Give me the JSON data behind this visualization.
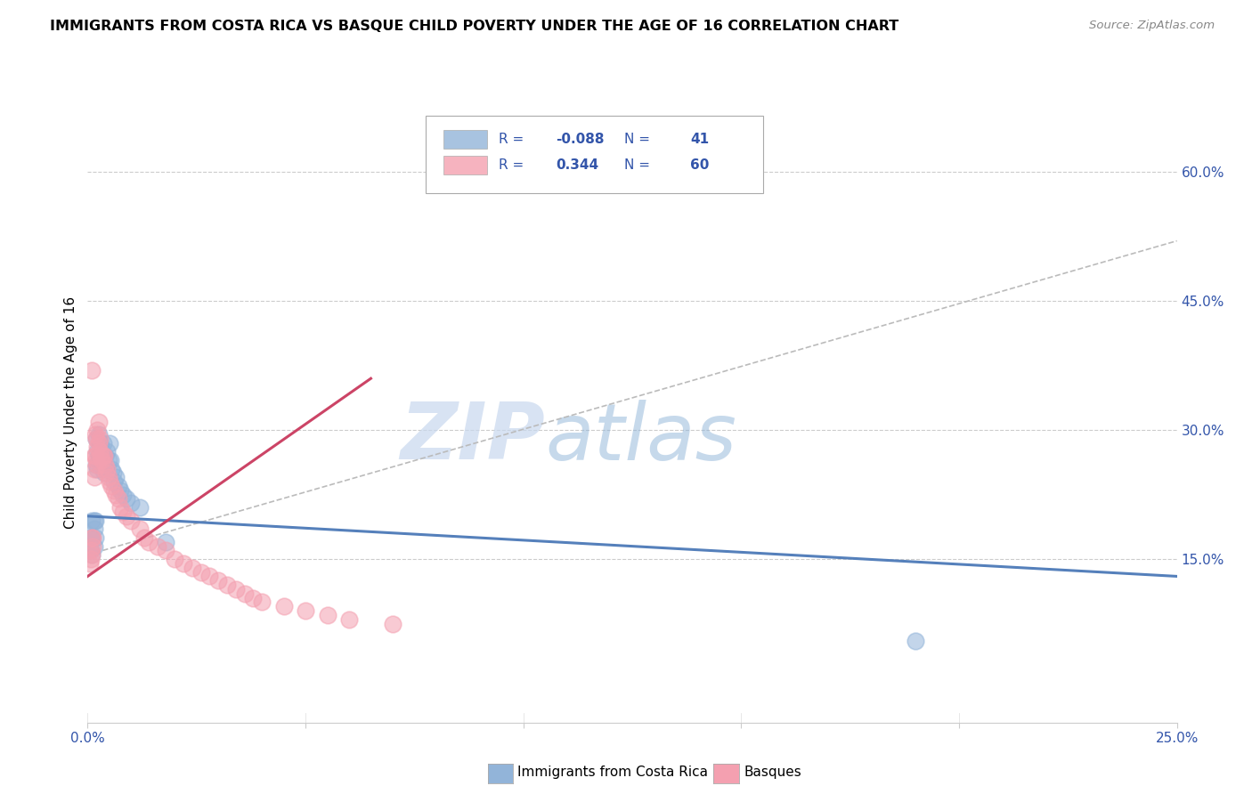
{
  "title": "IMMIGRANTS FROM COSTA RICA VS BASQUE CHILD POVERTY UNDER THE AGE OF 16 CORRELATION CHART",
  "source": "Source: ZipAtlas.com",
  "ylabel": "Child Poverty Under the Age of 16",
  "right_yticks": [
    "60.0%",
    "45.0%",
    "30.0%",
    "15.0%"
  ],
  "right_ytick_vals": [
    0.6,
    0.45,
    0.3,
    0.15
  ],
  "xmin": 0.0,
  "xmax": 0.25,
  "ymin": -0.04,
  "ymax": 0.68,
  "legend_blue_r": "-0.088",
  "legend_blue_n": "41",
  "legend_pink_r": "0.344",
  "legend_pink_n": "60",
  "blue_color": "#92B4D9",
  "pink_color": "#F4A0B0",
  "blue_line_color": "#5580BB",
  "pink_line_color": "#CC4466",
  "dash_color": "#BBBBBB",
  "watermark_zip": "ZIP",
  "watermark_atlas": "atlas",
  "blue_scatter_x": [
    0.0008,
    0.0008,
    0.001,
    0.001,
    0.001,
    0.0015,
    0.0015,
    0.0015,
    0.0018,
    0.0018,
    0.002,
    0.002,
    0.0022,
    0.0022,
    0.0025,
    0.0025,
    0.0028,
    0.0028,
    0.003,
    0.003,
    0.0035,
    0.0035,
    0.0038,
    0.004,
    0.0042,
    0.0045,
    0.0048,
    0.005,
    0.0052,
    0.0055,
    0.0058,
    0.006,
    0.0065,
    0.007,
    0.0075,
    0.008,
    0.009,
    0.01,
    0.012,
    0.018,
    0.19
  ],
  "blue_scatter_y": [
    0.175,
    0.16,
    0.195,
    0.175,
    0.155,
    0.195,
    0.185,
    0.165,
    0.195,
    0.175,
    0.29,
    0.26,
    0.275,
    0.255,
    0.295,
    0.27,
    0.285,
    0.26,
    0.28,
    0.265,
    0.285,
    0.265,
    0.25,
    0.27,
    0.255,
    0.275,
    0.265,
    0.285,
    0.265,
    0.255,
    0.25,
    0.24,
    0.245,
    0.235,
    0.23,
    0.225,
    0.22,
    0.215,
    0.21,
    0.17,
    0.055
  ],
  "pink_scatter_x": [
    0.0005,
    0.0008,
    0.0008,
    0.001,
    0.001,
    0.001,
    0.0012,
    0.0012,
    0.0015,
    0.0015,
    0.0015,
    0.0018,
    0.0018,
    0.002,
    0.002,
    0.0022,
    0.0022,
    0.0022,
    0.0025,
    0.0025,
    0.0028,
    0.0028,
    0.003,
    0.0032,
    0.0035,
    0.0038,
    0.004,
    0.0042,
    0.0045,
    0.0048,
    0.005,
    0.0055,
    0.006,
    0.0065,
    0.007,
    0.0075,
    0.008,
    0.009,
    0.01,
    0.012,
    0.013,
    0.014,
    0.016,
    0.018,
    0.02,
    0.022,
    0.024,
    0.026,
    0.028,
    0.03,
    0.032,
    0.034,
    0.036,
    0.038,
    0.04,
    0.045,
    0.05,
    0.055,
    0.06,
    0.07
  ],
  "pink_scatter_y": [
    0.145,
    0.16,
    0.15,
    0.37,
    0.175,
    0.155,
    0.175,
    0.165,
    0.27,
    0.255,
    0.245,
    0.295,
    0.27,
    0.29,
    0.265,
    0.3,
    0.28,
    0.26,
    0.31,
    0.285,
    0.29,
    0.275,
    0.27,
    0.265,
    0.27,
    0.27,
    0.26,
    0.25,
    0.255,
    0.245,
    0.24,
    0.235,
    0.23,
    0.225,
    0.22,
    0.21,
    0.205,
    0.2,
    0.195,
    0.185,
    0.175,
    0.17,
    0.165,
    0.16,
    0.15,
    0.145,
    0.14,
    0.135,
    0.13,
    0.125,
    0.12,
    0.115,
    0.11,
    0.105,
    0.1,
    0.095,
    0.09,
    0.085,
    0.08,
    0.075
  ],
  "blue_line_x": [
    0.0,
    0.25
  ],
  "blue_line_y": [
    0.2,
    0.13
  ],
  "pink_line_x": [
    0.0,
    0.065
  ],
  "pink_line_y": [
    0.13,
    0.36
  ],
  "dash_line_x": [
    0.0,
    0.25
  ],
  "dash_line_y": [
    0.155,
    0.52
  ]
}
